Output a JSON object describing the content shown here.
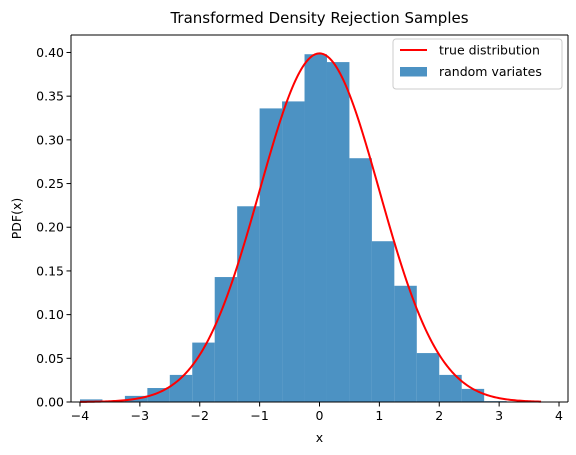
{
  "chart_data": {
    "type": "bar",
    "title": "Transformed Density Rejection Samples",
    "xlabel": "x",
    "ylabel": "PDF(x)",
    "xlim": [
      -4.15,
      4.15
    ],
    "ylim": [
      0,
      0.42
    ],
    "xticks": [
      -4,
      -3,
      -2,
      -1,
      0,
      1,
      2,
      3,
      4
    ],
    "yticks": [
      0.0,
      0.05,
      0.1,
      0.15,
      0.2,
      0.25,
      0.3,
      0.35,
      0.4
    ],
    "ytick_labels": [
      "0.00",
      "0.05",
      "0.10",
      "0.15",
      "0.20",
      "0.25",
      "0.30",
      "0.35",
      "0.40"
    ],
    "grid": false,
    "legend_position": "upper right",
    "series": [
      {
        "name": "true distribution",
        "type": "line",
        "color": "#ff0000",
        "function": "standard normal pdf",
        "x_range": [
          -4.0,
          3.7
        ]
      },
      {
        "name": "random variates",
        "type": "histogram",
        "color": "#1f77b4",
        "bin_edges": [
          -4.0,
          -3.625,
          -3.25,
          -2.875,
          -2.5,
          -2.125,
          -1.75,
          -1.375,
          -1.0,
          -0.625,
          -0.25,
          0.125,
          0.5,
          0.875,
          1.25,
          1.625,
          2.0,
          2.375,
          2.75,
          3.125
        ],
        "values": [
          0.003,
          0.001,
          0.007,
          0.016,
          0.031,
          0.068,
          0.143,
          0.224,
          0.336,
          0.344,
          0.398,
          0.389,
          0.279,
          0.184,
          0.133,
          0.056,
          0.031,
          0.015,
          0.001
        ]
      }
    ]
  }
}
